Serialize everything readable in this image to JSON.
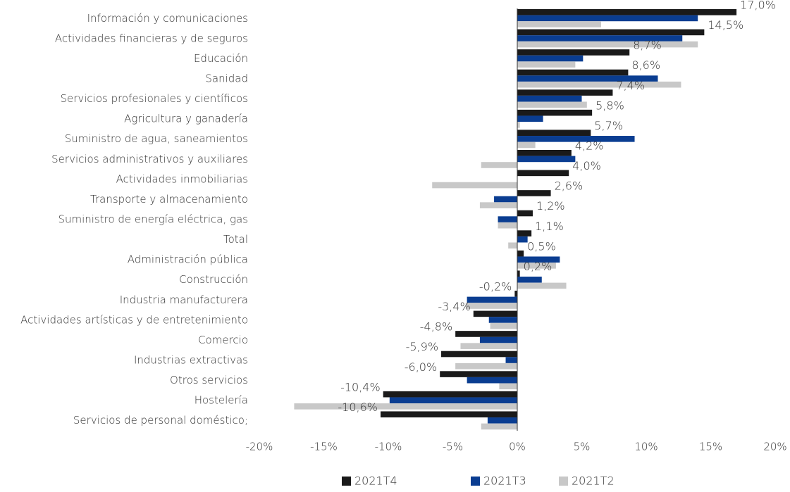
{
  "chart_data": {
    "type": "hbar",
    "categories": [
      "Información y comunicaciones",
      "Actividades financieras y de seguros",
      "Educación",
      "Sanidad",
      "Servicios profesionales y científicos",
      "Agricultura y ganadería",
      "Suministro de agua, saneamientos",
      "Servicios administrativos y auxiliares",
      "Actividades inmobiliarias",
      "Transporte y almacenamiento",
      "Suministro de energía eléctrica, gas",
      "Total",
      "Administración pública",
      "Construcción",
      "Industria manufacturera",
      "Actividades artísticas y de entretenimiento",
      "Comercio",
      "Industrias extractivas",
      "Otros servicios",
      "Hostelería",
      "Servicios de personal doméstico;"
    ],
    "series": [
      {
        "name": "2021T4",
        "color": "#1a1a1a",
        "values": [
          17.0,
          14.5,
          8.7,
          8.6,
          7.4,
          5.8,
          5.7,
          4.2,
          4.0,
          2.6,
          1.2,
          1.1,
          0.5,
          0.2,
          -0.2,
          -3.4,
          -4.8,
          -5.9,
          -6.0,
          -10.4,
          -10.6
        ],
        "value_labels": [
          "17,0%",
          "14,5%",
          "8,7%",
          "8,6%",
          "7,4%",
          "5,8%",
          "5,7%",
          "4,2%",
          "4,0%",
          "2,6%",
          "1,2%",
          "1,1%",
          "0,5%",
          "0,2%",
          "-0,2%",
          "-3,4%",
          "-4,8%",
          "-5,9%",
          "-6,0%",
          "-10,4%",
          "-10,6%"
        ]
      },
      {
        "name": "2021T3",
        "color": "#0a3d91",
        "values": [
          14.0,
          12.8,
          5.1,
          10.9,
          5.0,
          2.0,
          9.1,
          4.5,
          0,
          -1.8,
          -1.5,
          0.8,
          3.3,
          1.9,
          -3.9,
          -2.2,
          -2.9,
          -0.9,
          -3.9,
          -9.9,
          -2.3
        ]
      },
      {
        "name": "2021T2",
        "color": "#c8c8c8",
        "values": [
          6.5,
          14.0,
          4.5,
          12.7,
          5.4,
          0.2,
          1.4,
          -2.8,
          -6.6,
          -2.9,
          -1.5,
          -0.7,
          3.0,
          3.8,
          -4.0,
          -2.1,
          -4.4,
          -4.8,
          -1.4,
          -17.3,
          -2.8
        ]
      }
    ],
    "xlim": [
      -20,
      20
    ],
    "xticks": [
      {
        "value": -20,
        "label": "-20%"
      },
      {
        "value": -15,
        "label": "-15%"
      },
      {
        "value": -10,
        "label": "-10%"
      },
      {
        "value": -5,
        "label": "-5%"
      },
      {
        "value": 0,
        "label": "0%"
      },
      {
        "value": 5,
        "label": "5%"
      },
      {
        "value": 10,
        "label": "10%"
      },
      {
        "value": 15,
        "label": "15%"
      },
      {
        "value": 20,
        "label": "20%"
      }
    ],
    "legend": "bottom"
  }
}
